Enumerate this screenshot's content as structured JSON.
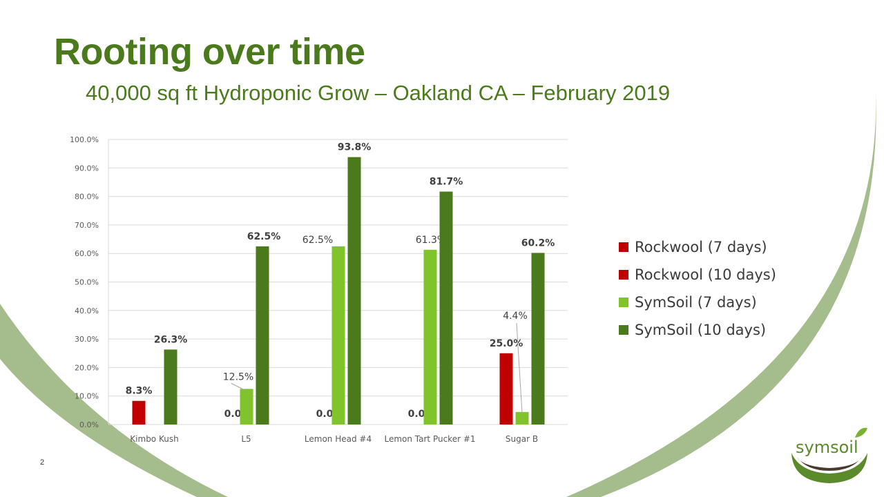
{
  "slide": {
    "title": "Rooting over time",
    "subtitle": "40,000 sq ft Hydroponic Grow – Oakland CA – February 2019",
    "page_number": "2",
    "logo_text": "symsoil"
  },
  "colors": {
    "title": "#4a7a1c",
    "arc": "#a5bd8c",
    "rockwool": "#c00000",
    "symsoil_7": "#7ec42a",
    "symsoil_10": "#4b7a1c"
  },
  "chart_data": {
    "type": "bar",
    "categories": [
      "Kimbo Kush",
      "L5",
      "Lemon Head #4",
      "Lemon Tart Pucker #1",
      "Sugar B"
    ],
    "series": [
      {
        "name": "Rockwool (7 days)",
        "color": "#c00000",
        "values": [
          null,
          null,
          null,
          null,
          null
        ],
        "labels": [
          "",
          "",
          "",
          "",
          ""
        ]
      },
      {
        "name": "Rockwool (10 days)",
        "color": "#c00000",
        "values": [
          8.3,
          0.0,
          0.0,
          0.0,
          25.0
        ],
        "labels": [
          "8.3%",
          "0.0%",
          "0.0%",
          "0.0%",
          "25.0%"
        ]
      },
      {
        "name": "SymSoil (7 days)",
        "color": "#7ec42a",
        "values": [
          null,
          12.5,
          62.5,
          61.3,
          4.4
        ],
        "labels": [
          "",
          "12.5%",
          "62.5%",
          "61.3%",
          "4.4%"
        ]
      },
      {
        "name": "SymSoil (10 days)",
        "color": "#4b7a1c",
        "values": [
          26.3,
          62.5,
          93.8,
          81.7,
          60.2
        ],
        "labels": [
          "26.3%",
          "62.5%",
          "93.8%",
          "81.7%",
          "60.2%"
        ]
      }
    ],
    "ylim": [
      0,
      100
    ],
    "yticks": [
      "0.0%",
      "10.0%",
      "20.0%",
      "30.0%",
      "40.0%",
      "50.0%",
      "60.0%",
      "70.0%",
      "80.0%",
      "90.0%",
      "100.0%"
    ],
    "grid": true,
    "legend": "right",
    "xlabel": "",
    "ylabel": ""
  }
}
